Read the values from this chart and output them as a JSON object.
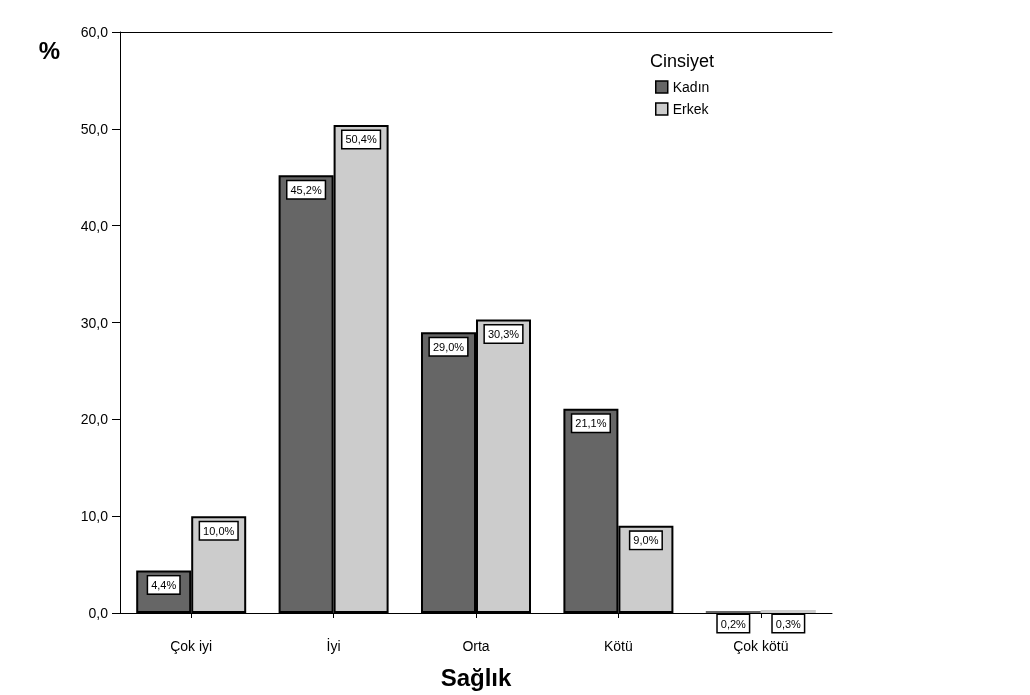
{
  "chart_data": {
    "type": "bar",
    "xlabel": "Sağlık",
    "ylabel": "%",
    "legend_title": "Cinsiyet",
    "legend": "top right",
    "grid": false,
    "categories": [
      "Çok iyi",
      "İyi",
      "Orta",
      "Kötü",
      "Çok kötü"
    ],
    "series": [
      {
        "name": "Kadın",
        "color": "#666666",
        "values": [
          4.4,
          45.2,
          29.0,
          21.1,
          0.2
        ],
        "value_labels": [
          "4,4%",
          "45,2%",
          "29,0%",
          "21,1%",
          "0,2%"
        ]
      },
      {
        "name": "Erkek",
        "color": "#cccccc",
        "values": [
          10.0,
          50.4,
          30.3,
          9.0,
          0.3
        ],
        "value_labels": [
          "10,0%",
          "50,4%",
          "30,3%",
          "9,0%",
          "0,3%"
        ]
      }
    ],
    "ylim": [
      0,
      60
    ],
    "yticks": [
      {
        "value": 0,
        "label": "0,0"
      },
      {
        "value": 10,
        "label": "10,0"
      },
      {
        "value": 20,
        "label": "20,0"
      },
      {
        "value": 30,
        "label": "30,0"
      },
      {
        "value": 40,
        "label": "40,0"
      },
      {
        "value": 50,
        "label": "50,0"
      },
      {
        "value": 60,
        "label": "60,0"
      }
    ]
  }
}
